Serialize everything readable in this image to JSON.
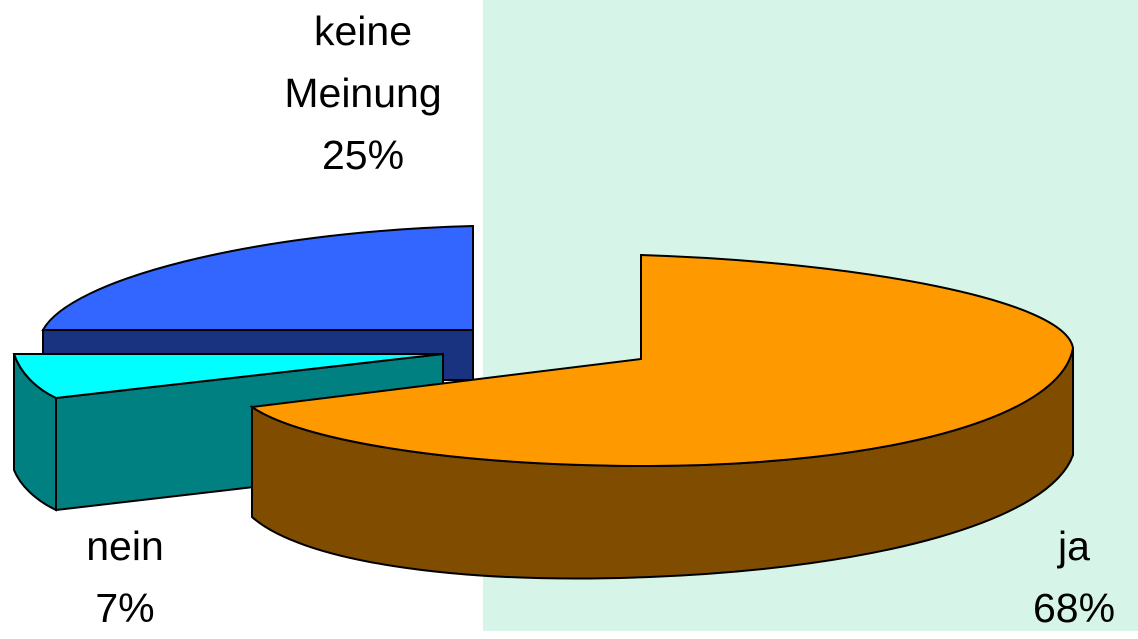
{
  "chart_data": {
    "type": "pie",
    "title": "",
    "slices": [
      {
        "label": "ja",
        "value_text": "68%",
        "value": 68,
        "color": "#ff9900",
        "side_color": "#7f4c00"
      },
      {
        "label": "keine\nMeinung",
        "label_lines": [
          "keine",
          "Meinung"
        ],
        "value_text": "25%",
        "value": 25,
        "color": "#3366ff",
        "side_color": "#1a3380"
      },
      {
        "label": "nein",
        "value_text": "7%",
        "value": 7,
        "color": "#00ffff",
        "side_color": "#008080"
      }
    ],
    "style": "3d-exploded",
    "background_color": "#d6f5e8"
  }
}
